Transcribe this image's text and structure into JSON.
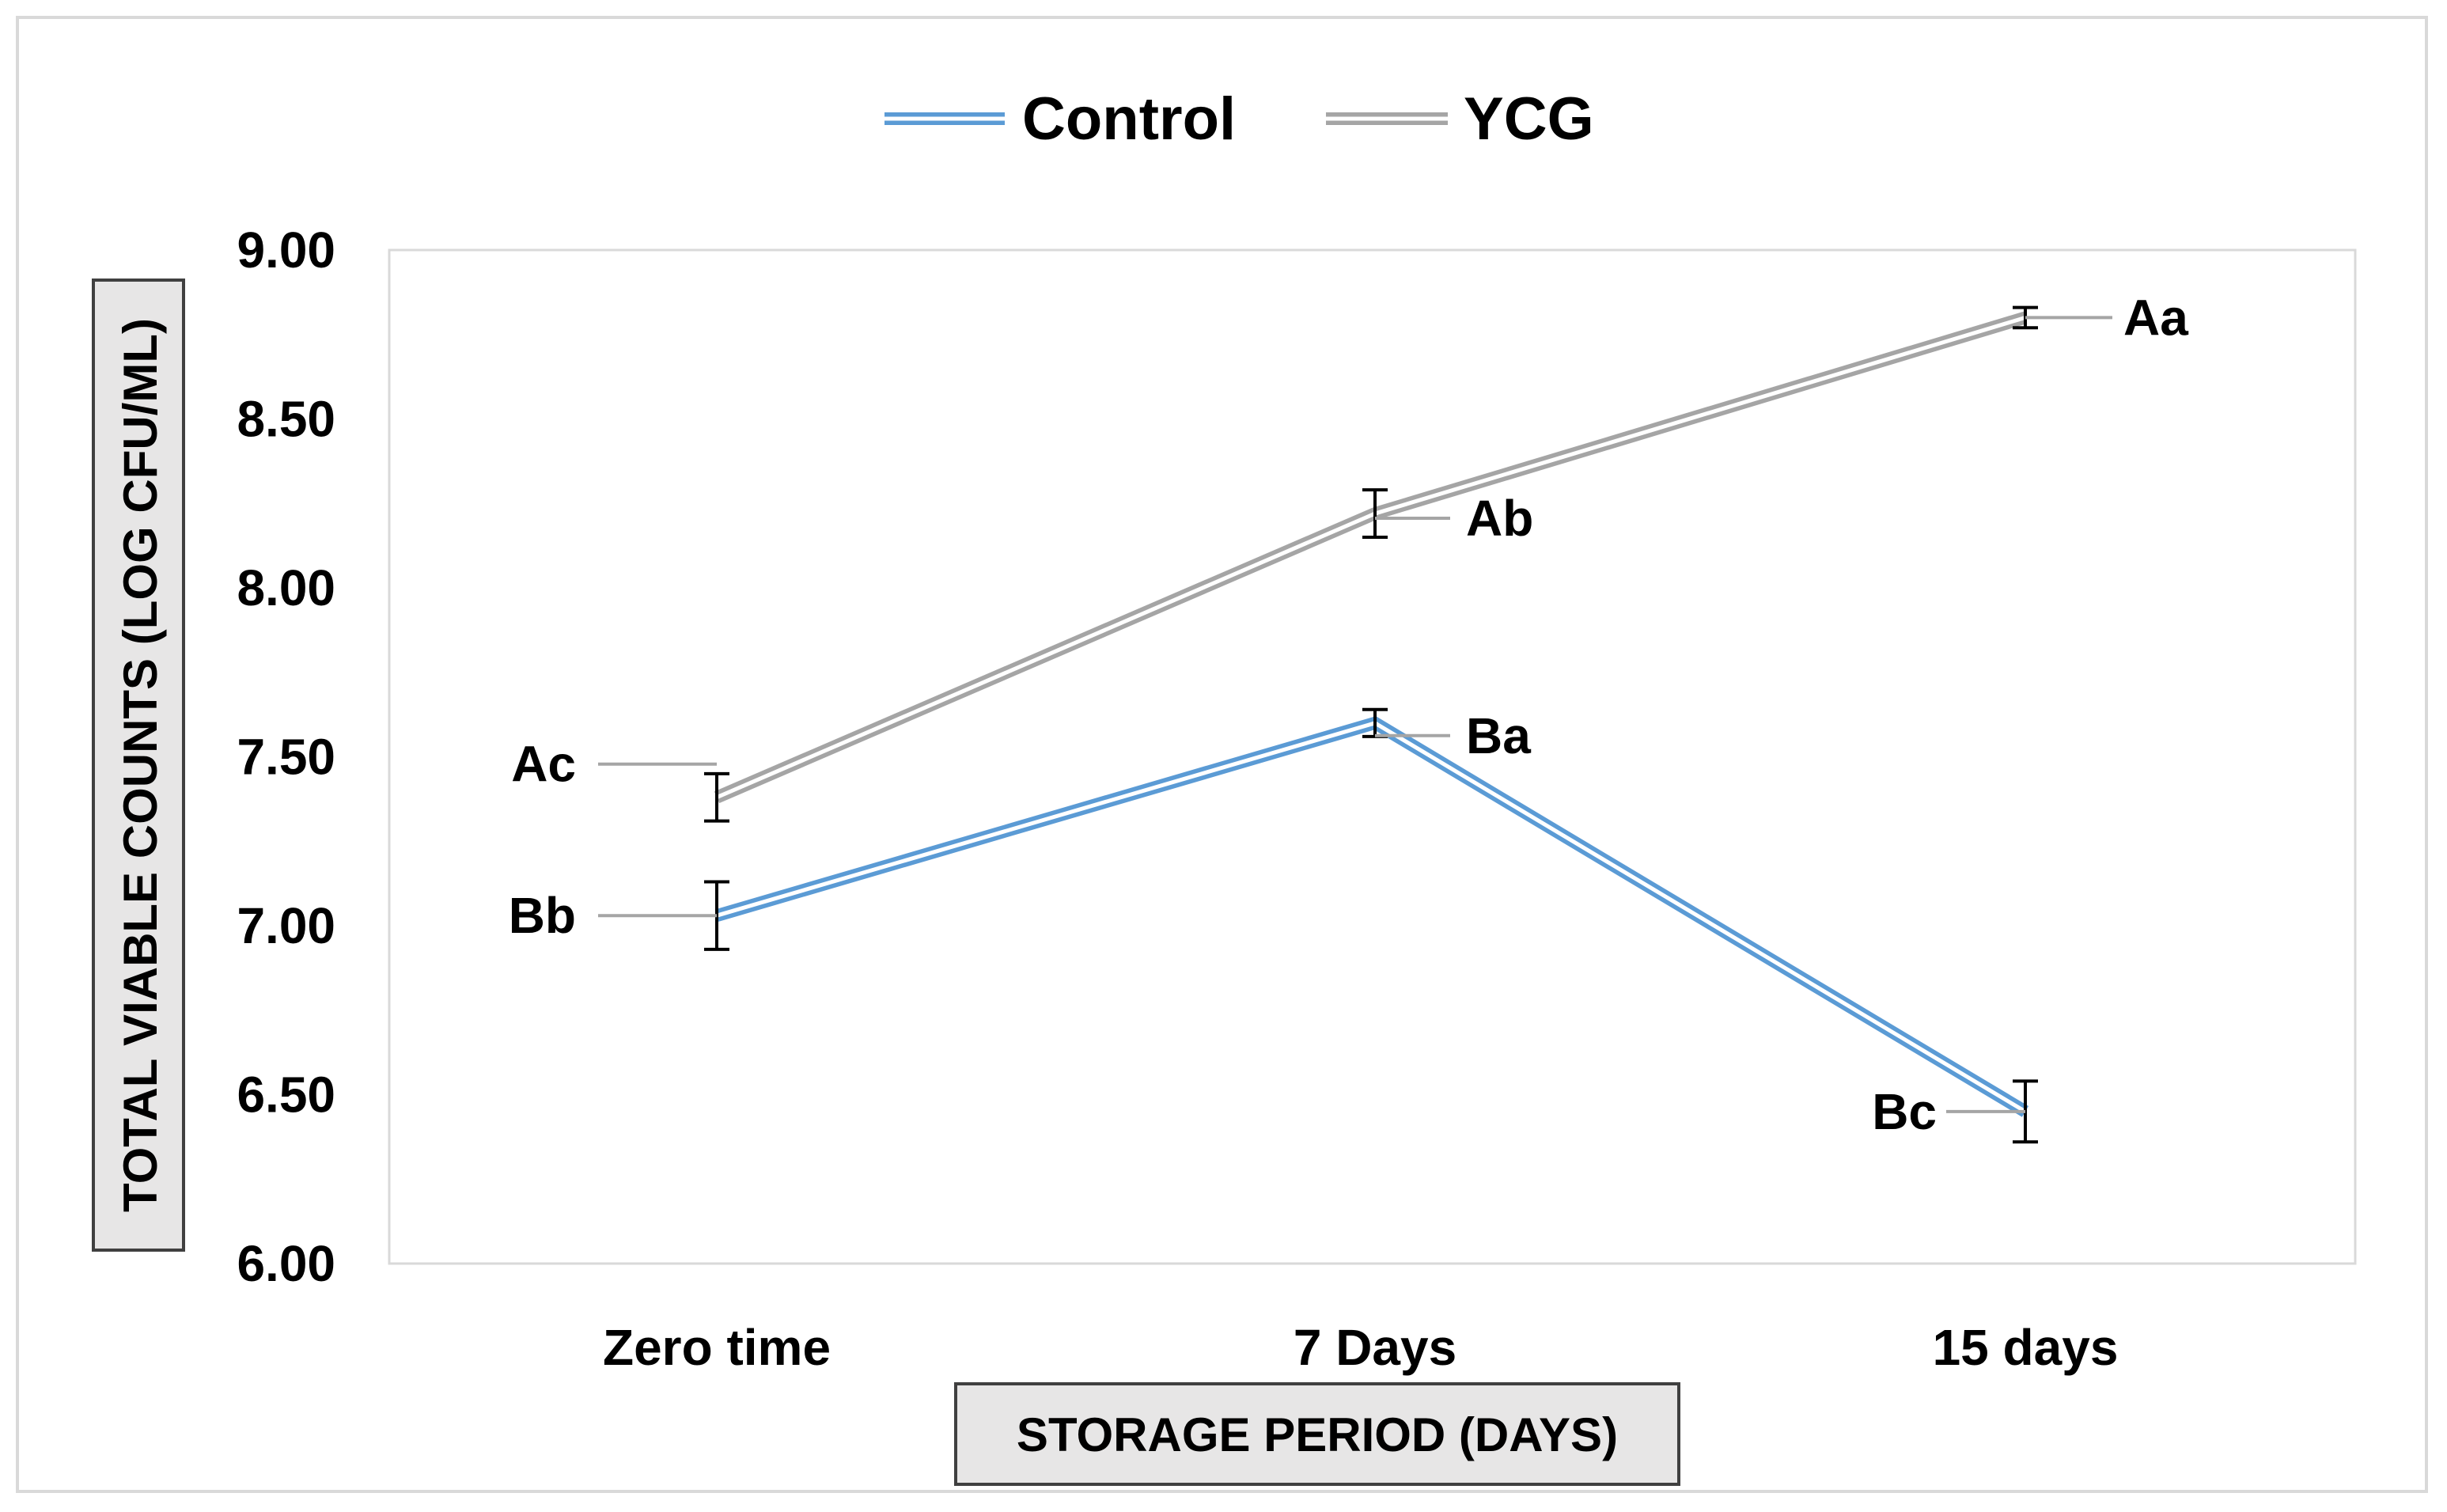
{
  "chart_data": {
    "type": "line",
    "title": "",
    "xlabel": "STORAGE PERIOD (DAYS)",
    "ylabel": "TOTAL VIABLE COUNTS (LOG CFU/ML)",
    "categories": [
      "Zero time",
      "7 Days",
      "15 days"
    ],
    "ylim": [
      6.0,
      9.0
    ],
    "yticks": [
      "6.00",
      "6.50",
      "7.00",
      "7.50",
      "8.00",
      "8.50",
      "9.00"
    ],
    "grid": false,
    "legend_position": "top-center",
    "series": [
      {
        "name": "Control",
        "color": "#5b9bd5",
        "values": [
          7.03,
          7.6,
          6.45
        ],
        "errors": [
          0.1,
          0.04,
          0.09
        ],
        "labels": [
          "Bb",
          "Ba",
          "Bc"
        ]
      },
      {
        "name": "YCG",
        "color": "#a5a5a5",
        "values": [
          7.38,
          8.22,
          8.8
        ],
        "errors": [
          0.07,
          0.07,
          0.03
        ],
        "labels": [
          "Ac",
          "Ab",
          "Aa"
        ]
      }
    ]
  }
}
